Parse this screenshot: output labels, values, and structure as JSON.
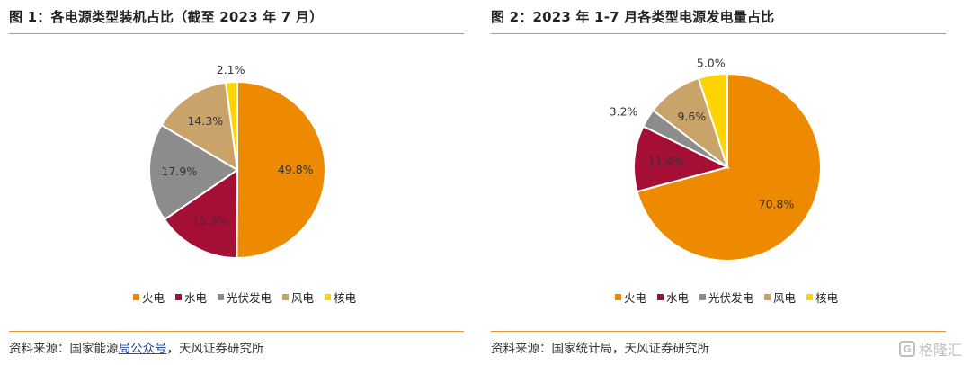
{
  "chart_data": [
    {
      "type": "pie",
      "title": "图 1：各电源类型装机占比（截至 2023 年 7 月）",
      "categories": [
        "火电",
        "水电",
        "光伏发电",
        "风电",
        "核电"
      ],
      "values": [
        49.8,
        15.3,
        17.9,
        14.3,
        2.1
      ],
      "labels": [
        "49.8%",
        "15.3%",
        "17.9%",
        "14.3%",
        "2.1%"
      ],
      "colors": [
        "#ee8a00",
        "#a50f35",
        "#8c8c8c",
        "#c9a36a",
        "#ffd400"
      ],
      "legend": "bottom",
      "source": "资料来源：国家能源局公众号，天风证券研究所"
    },
    {
      "type": "pie",
      "title": "图 2：2023 年 1-7 月各类型电源发电量占比",
      "categories": [
        "火电",
        "水电",
        "光伏发电",
        "风电",
        "核电"
      ],
      "values": [
        70.8,
        11.4,
        3.2,
        9.6,
        5.0
      ],
      "labels": [
        "70.8%",
        "11.4%",
        "3.2%",
        "9.6%",
        "5.0%"
      ],
      "colors": [
        "#ee8a00",
        "#a50f35",
        "#8c8c8c",
        "#c9a36a",
        "#ffd400"
      ],
      "legend": "bottom",
      "source": "资料来源：国家统计局，天风证券研究所"
    }
  ],
  "left": {
    "title": "图 1：各电源类型装机占比（截至 2023 年 7 月）",
    "source_prefix": "资料来源：国家能源",
    "source_link": "局公众号",
    "source_suffix": "，天风证券研究所"
  },
  "right": {
    "title": "图 2：2023 年 1-7 月各类型电源发电量占比",
    "source": "资料来源：国家统计局，天风证券研究所"
  },
  "watermark": {
    "logo": "G",
    "text": "格隆汇"
  }
}
